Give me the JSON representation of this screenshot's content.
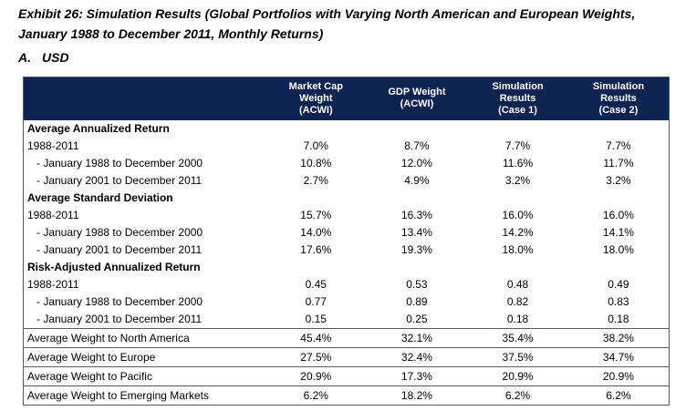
{
  "title": {
    "line1": "Exhibit 26: Simulation Results (Global Portfolios with Varying North American and European Weights,",
    "line2": "January 1988 to December 2011, Monthly Returns)"
  },
  "panel": {
    "letter": "A.",
    "label": "USD"
  },
  "table": {
    "colors": {
      "header_bg": "#0d2452",
      "header_text": "#ffffff",
      "border": "#595959"
    },
    "columns": [
      [
        "Market Cap Weight",
        "(ACWI)"
      ],
      [
        "GDP Weight (ACWI)"
      ],
      [
        "Simulation Results",
        "(Case 1)"
      ],
      [
        "Simulation Results",
        "(Case 2)"
      ]
    ],
    "rows": [
      {
        "type": "section",
        "label": "Average Annualized Return",
        "values": []
      },
      {
        "type": "data",
        "label": "1988-2011",
        "values": [
          "7.0%",
          "8.7%",
          "7.7%",
          "7.7%"
        ]
      },
      {
        "type": "indent",
        "label": "- January 1988 to December 2000",
        "values": [
          "10.8%",
          "12.0%",
          "11.6%",
          "11.7%"
        ]
      },
      {
        "type": "indent",
        "label": "- January 2001 to December 2011",
        "values": [
          "2.7%",
          "4.9%",
          "3.2%",
          "3.2%"
        ]
      },
      {
        "type": "section",
        "label": "Average Standard Deviation",
        "values": []
      },
      {
        "type": "data",
        "label": "1988-2011",
        "values": [
          "15.7%",
          "16.3%",
          "16.0%",
          "16.0%"
        ]
      },
      {
        "type": "indent",
        "label": "- January 1988 to December 2000",
        "values": [
          "14.0%",
          "13.4%",
          "14.2%",
          "14.1%"
        ]
      },
      {
        "type": "indent",
        "label": "- January 2001 to December 2011",
        "values": [
          "17.6%",
          "19.3%",
          "18.0%",
          "18.0%"
        ]
      },
      {
        "type": "section",
        "label": "Risk-Adjusted Annualized Return",
        "values": []
      },
      {
        "type": "data",
        "label": "1988-2011",
        "values": [
          "0.45",
          "0.53",
          "0.48",
          "0.49"
        ]
      },
      {
        "type": "indent",
        "label": "- January 1988 to December 2000",
        "values": [
          "0.77",
          "0.89",
          "0.82",
          "0.83"
        ]
      },
      {
        "type": "indent",
        "label": "- January 2001 to December 2011",
        "values": [
          "0.15",
          "0.25",
          "0.18",
          "0.18"
        ]
      },
      {
        "type": "weight",
        "label": "Average Weight to North America",
        "values": [
          "45.4%",
          "32.1%",
          "35.4%",
          "38.2%"
        ]
      },
      {
        "type": "weight",
        "label": "Average Weight to Europe",
        "values": [
          "27.5%",
          "32.4%",
          "37.5%",
          "34.7%"
        ]
      },
      {
        "type": "weight",
        "label": "Average Weight to Pacific",
        "values": [
          "20.9%",
          "17.3%",
          "20.9%",
          "20.9%"
        ]
      },
      {
        "type": "weight",
        "label": "Average Weight to Emerging Markets",
        "values": [
          "6.2%",
          "18.2%",
          "6.2%",
          "6.2%"
        ]
      }
    ]
  }
}
